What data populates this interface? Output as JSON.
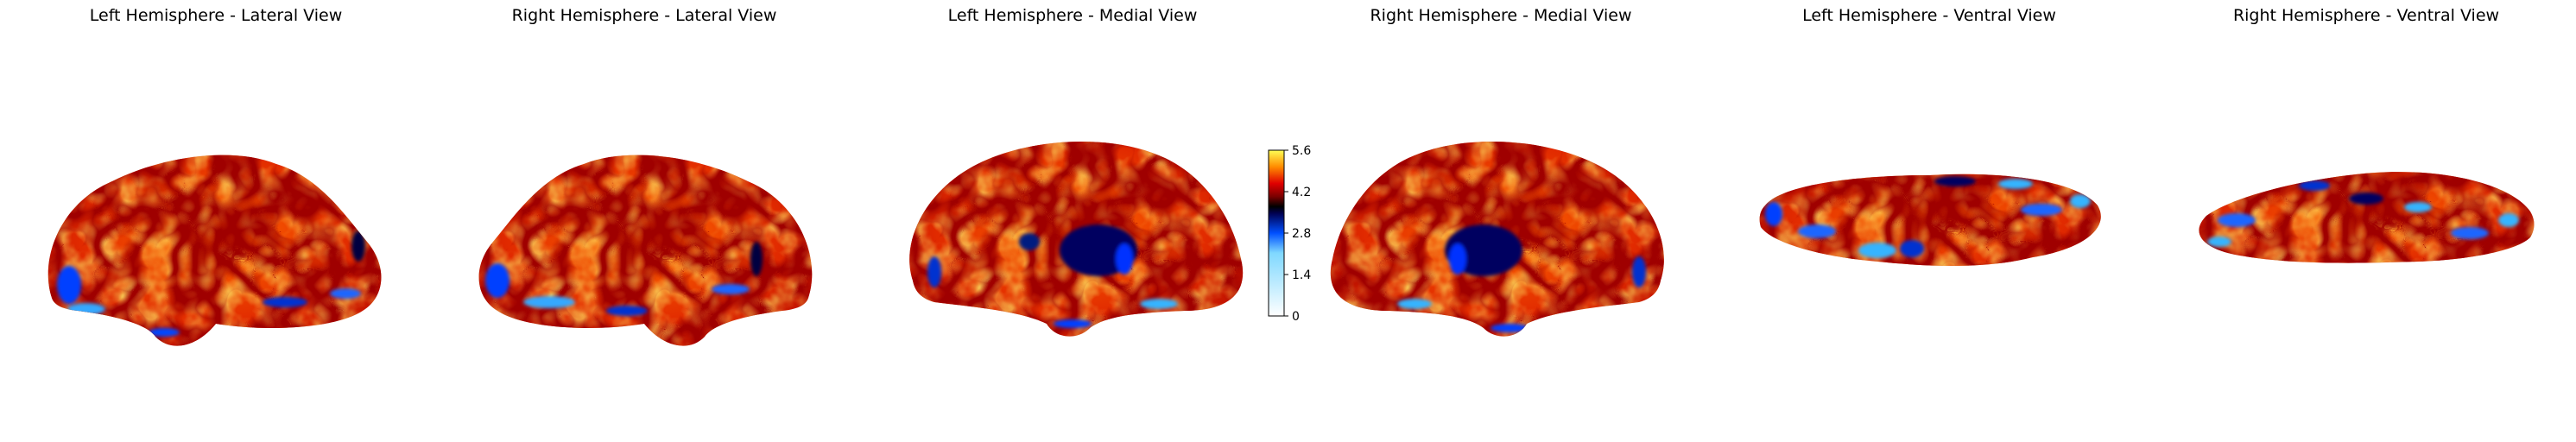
{
  "figure": {
    "views": [
      {
        "title": "Left Hemisphere - Lateral View",
        "shape": "lateral-left"
      },
      {
        "title": "Right Hemisphere - Lateral View",
        "shape": "lateral-right"
      },
      {
        "title": "Left Hemisphere - Medial View",
        "shape": "medial-left"
      },
      {
        "title": "Right Hemisphere - Medial View",
        "shape": "medial-right"
      },
      {
        "title": "Left Hemisphere - Ventral View",
        "shape": "ventral-left"
      },
      {
        "title": "Right Hemisphere - Ventral View",
        "shape": "ventral-right"
      }
    ],
    "colorbar": {
      "min": 0,
      "max": 5.6,
      "ticks": [
        "0",
        "1.4",
        "2.8",
        "4.2",
        "5.6"
      ],
      "colormap": "blue-black-red-yellow"
    }
  }
}
